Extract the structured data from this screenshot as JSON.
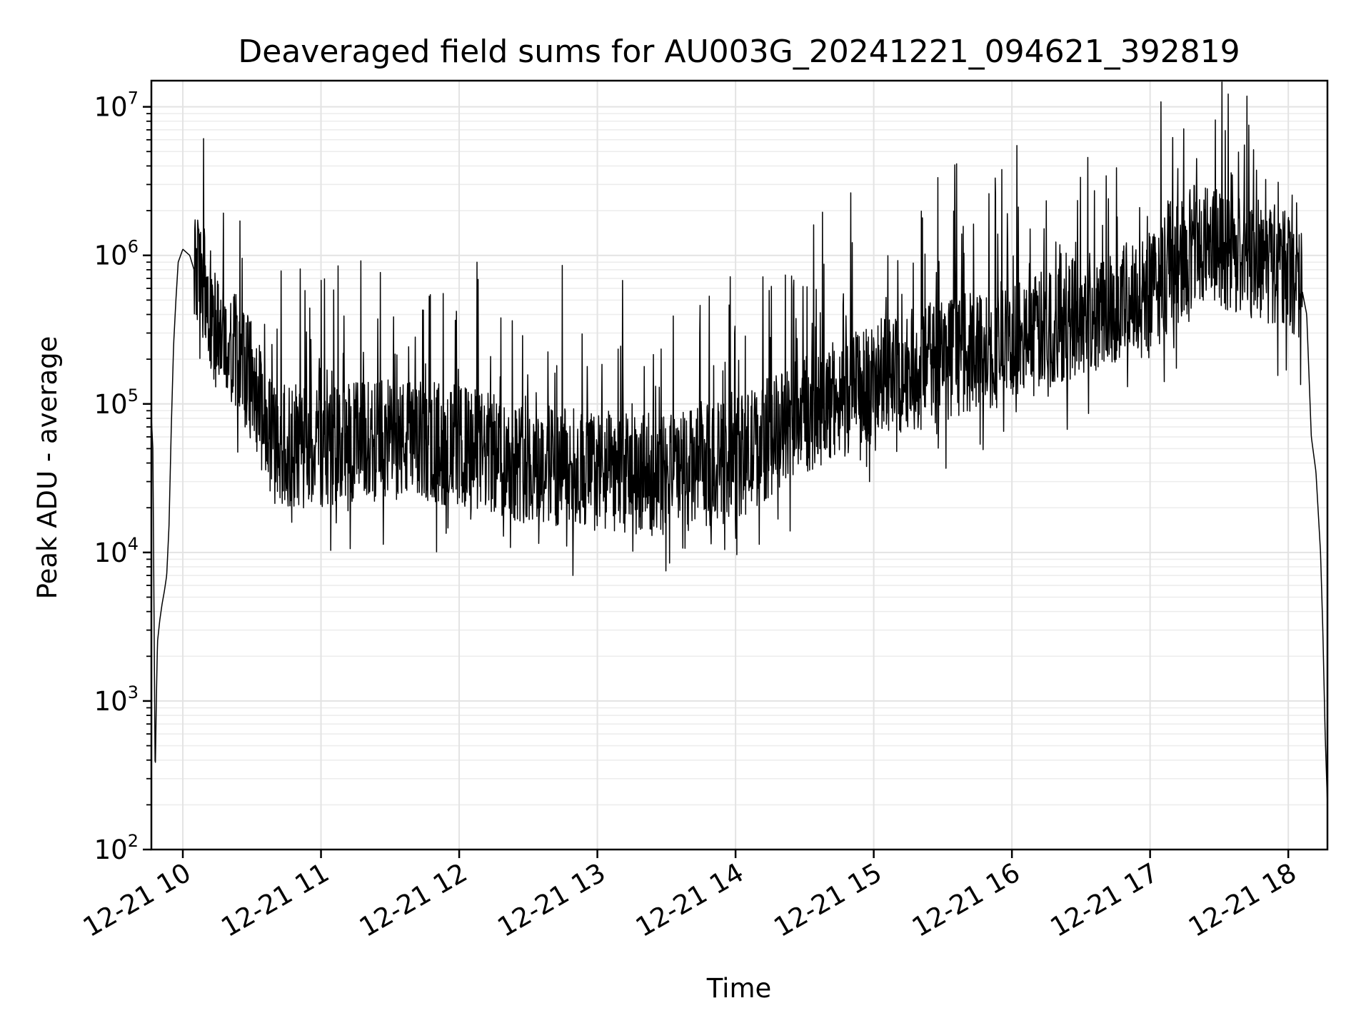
{
  "chart_data": {
    "type": "line",
    "title": "Deaveraged field sums for AU003G_20241221_094621_392819",
    "xlabel": "Time",
    "ylabel": "Peak ADU - average",
    "yscale": "log",
    "ylim": [
      100,
      15000000
    ],
    "xlim": [
      "2024-12-21T09:46:21",
      "2024-12-21T18:17:00"
    ],
    "grid": true,
    "x_ticks": [
      {
        "value": "2024-12-21T10:00:00",
        "label": "12-21 10"
      },
      {
        "value": "2024-12-21T11:00:00",
        "label": "12-21 11"
      },
      {
        "value": "2024-12-21T12:00:00",
        "label": "12-21 12"
      },
      {
        "value": "2024-12-21T13:00:00",
        "label": "12-21 13"
      },
      {
        "value": "2024-12-21T14:00:00",
        "label": "12-21 14"
      },
      {
        "value": "2024-12-21T15:00:00",
        "label": "12-21 15"
      },
      {
        "value": "2024-12-21T16:00:00",
        "label": "12-21 16"
      },
      {
        "value": "2024-12-21T17:00:00",
        "label": "12-21 17"
      },
      {
        "value": "2024-12-21T18:00:00",
        "label": "12-21 18"
      }
    ],
    "y_ticks": [
      {
        "value": 100,
        "base": "10",
        "exp": "2"
      },
      {
        "value": 1000,
        "base": "10",
        "exp": "3"
      },
      {
        "value": 10000,
        "base": "10",
        "exp": "4"
      },
      {
        "value": 100000,
        "base": "10",
        "exp": "5"
      },
      {
        "value": 1000000,
        "base": "10",
        "exp": "6"
      },
      {
        "value": 10000000,
        "base": "10",
        "exp": "7"
      }
    ],
    "series": [
      {
        "color": "#000000",
        "x": [
          "2024-12-21T09:46:21",
          "2024-12-21T09:47:00",
          "2024-12-21T09:48:00",
          "2024-12-21T09:48:30",
          "2024-12-21T09:49:00",
          "2024-12-21T09:50:00",
          "2024-12-21T09:51:00",
          "2024-12-21T09:52:00",
          "2024-12-21T09:53:00",
          "2024-12-21T09:54:00",
          "2024-12-21T09:55:00",
          "2024-12-21T09:56:00",
          "2024-12-21T09:57:00",
          "2024-12-21T09:58:00",
          "2024-12-21T10:00:00",
          "2024-12-21T10:03:00",
          "2024-12-21T10:06:00",
          "2024-12-21T10:08:00",
          "2024-12-21T10:10:00",
          "2024-12-21T10:12:00",
          "2024-12-21T10:15:00",
          "2024-12-21T10:20:00",
          "2024-12-21T10:25:00",
          "2024-12-21T10:30:00",
          "2024-12-21T10:35:00",
          "2024-12-21T10:40:00",
          "2024-12-21T10:50:00",
          "2024-12-21T11:00:00",
          "2024-12-21T11:30:00",
          "2024-12-21T12:00:00",
          "2024-12-21T12:30:00",
          "2024-12-21T13:00:00",
          "2024-12-21T13:30:00",
          "2024-12-21T14:00:00",
          "2024-12-21T14:30:00",
          "2024-12-21T15:00:00",
          "2024-12-21T15:30:00",
          "2024-12-21T16:00:00",
          "2024-12-21T16:30:00",
          "2024-12-21T17:00:00",
          "2024-12-21T17:20:00",
          "2024-12-21T17:40:00",
          "2024-12-21T17:55:00",
          "2024-12-21T18:05:00",
          "2024-12-21T18:08:00",
          "2024-12-21T18:10:00",
          "2024-12-21T18:12:00",
          "2024-12-21T18:14:00",
          "2024-12-21T18:15:00",
          "2024-12-21T18:16:00",
          "2024-12-21T18:17:00"
        ],
        "y": [
          80000,
          50000,
          300,
          1000,
          2500,
          3500,
          4500,
          5500,
          7000,
          15000,
          70000,
          250000,
          500000,
          900000,
          1100000,
          1000000,
          700000,
          650000,
          600000,
          400000,
          280000,
          230000,
          200000,
          140000,
          80000,
          55000,
          48000,
          52000,
          58000,
          52000,
          40000,
          35000,
          33000,
          42000,
          85000,
          140000,
          200000,
          250000,
          400000,
          550000,
          1200000,
          1000000,
          850000,
          700000,
          400000,
          60000,
          35000,
          10000,
          3000,
          600,
          200
        ],
        "noise_amplitude_decades": 0.55,
        "spike_amplitude_decades": 0.9
      }
    ]
  }
}
